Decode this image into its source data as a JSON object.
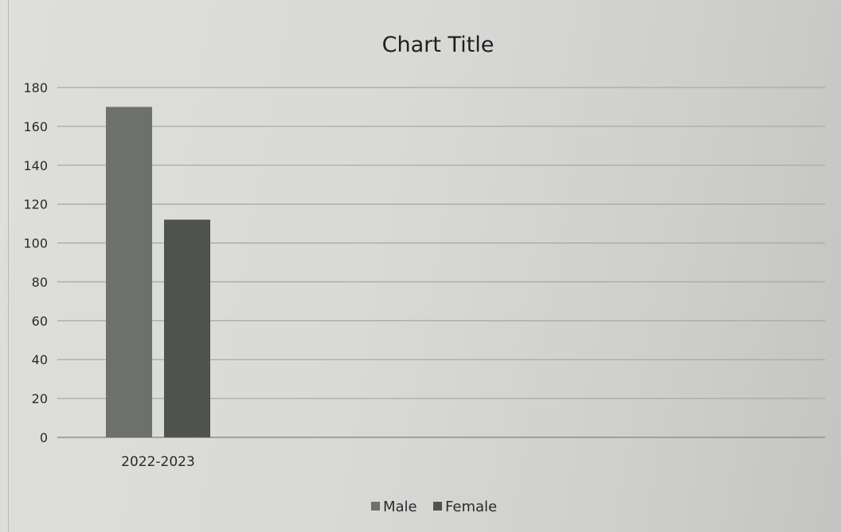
{
  "chart_data": {
    "type": "bar",
    "title": "Chart Title",
    "categories": [
      "2022-2023"
    ],
    "series": [
      {
        "name": "Male",
        "values": [
          170
        ],
        "color": "#6d716e"
      },
      {
        "name": "Female",
        "values": [
          112
        ],
        "color": "#4f5350"
      }
    ],
    "ylim": [
      0,
      180
    ],
    "yticks": [
      0,
      20,
      40,
      60,
      80,
      100,
      120,
      140,
      160,
      180
    ],
    "grid": true,
    "legend_position": "bottom"
  }
}
